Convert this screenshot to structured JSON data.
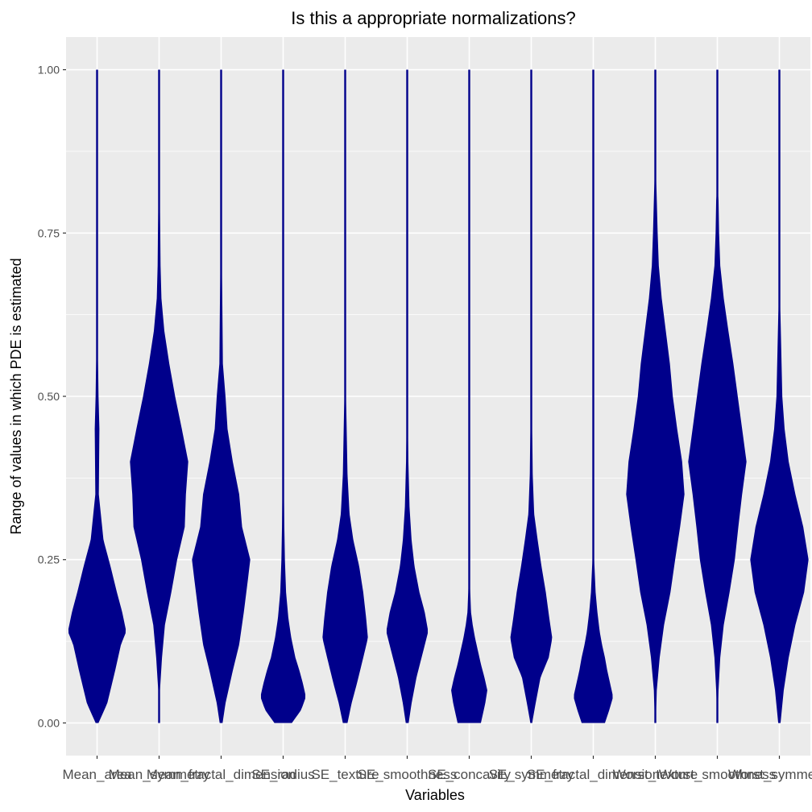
{
  "chart_data": {
    "type": "violin",
    "title": "Is this a appropriate normalizations?",
    "xlabel": "Variables",
    "ylabel": "Range of values in which PDE is estimated",
    "ylim": [
      -0.05,
      1.05
    ],
    "yticks": [
      0.0,
      0.25,
      0.5,
      0.75,
      1.0
    ],
    "ytick_labels": [
      "0.00",
      "0.25",
      "0.50",
      "0.75",
      "1.00"
    ],
    "grid": true,
    "fill_color": "#00008B",
    "categories": [
      "Mean_area",
      "Mean_symmetry",
      "Mean_fractal_dimension",
      "SE_radius",
      "SE_texture",
      "SE_smoothness",
      "SE_concavity",
      "SE_symmetry",
      "SE_fractal_dimension",
      "Worst_texture",
      "Worst_smoothness",
      "Worst_symmetry"
    ],
    "series": [
      {
        "range": [
          0.0,
          1.0
        ],
        "density": [
          [
            0.0,
            0.05
          ],
          [
            0.03,
            0.35
          ],
          [
            0.08,
            0.62
          ],
          [
            0.12,
            0.82
          ],
          [
            0.14,
            1.0
          ],
          [
            0.17,
            0.86
          ],
          [
            0.2,
            0.68
          ],
          [
            0.24,
            0.46
          ],
          [
            0.28,
            0.22
          ],
          [
            0.35,
            0.06
          ],
          [
            0.45,
            0.08
          ],
          [
            0.5,
            0.05
          ],
          [
            0.6,
            0.02
          ],
          [
            1.0,
            0.015
          ]
        ]
      },
      {
        "range": [
          0.0,
          1.0
        ],
        "density": [
          [
            0.0,
            0.015
          ],
          [
            0.05,
            0.03
          ],
          [
            0.1,
            0.1
          ],
          [
            0.15,
            0.2
          ],
          [
            0.2,
            0.42
          ],
          [
            0.25,
            0.62
          ],
          [
            0.3,
            0.88
          ],
          [
            0.35,
            0.92
          ],
          [
            0.4,
            1.0
          ],
          [
            0.45,
            0.78
          ],
          [
            0.5,
            0.55
          ],
          [
            0.55,
            0.35
          ],
          [
            0.6,
            0.18
          ],
          [
            0.65,
            0.08
          ],
          [
            0.7,
            0.05
          ],
          [
            0.8,
            0.03
          ],
          [
            1.0,
            0.015
          ]
        ]
      },
      {
        "range": [
          0.0,
          1.0
        ],
        "density": [
          [
            0.0,
            0.05
          ],
          [
            0.03,
            0.15
          ],
          [
            0.08,
            0.4
          ],
          [
            0.12,
            0.62
          ],
          [
            0.17,
            0.78
          ],
          [
            0.22,
            0.92
          ],
          [
            0.25,
            1.0
          ],
          [
            0.3,
            0.72
          ],
          [
            0.35,
            0.62
          ],
          [
            0.4,
            0.4
          ],
          [
            0.45,
            0.22
          ],
          [
            0.5,
            0.15
          ],
          [
            0.55,
            0.06
          ],
          [
            0.7,
            0.03
          ],
          [
            1.0,
            0.015
          ]
        ]
      },
      {
        "range": [
          0.0,
          1.0
        ],
        "density": [
          [
            0.0,
            0.3
          ],
          [
            0.02,
            0.62
          ],
          [
            0.04,
            0.78
          ],
          [
            0.06,
            0.68
          ],
          [
            0.08,
            0.56
          ],
          [
            0.1,
            0.42
          ],
          [
            0.13,
            0.28
          ],
          [
            0.16,
            0.18
          ],
          [
            0.2,
            0.1
          ],
          [
            0.25,
            0.06
          ],
          [
            0.3,
            0.04
          ],
          [
            0.45,
            0.015
          ],
          [
            1.0,
            0.015
          ]
        ]
      },
      {
        "range": [
          0.0,
          1.0
        ],
        "density": [
          [
            0.0,
            0.08
          ],
          [
            0.03,
            0.22
          ],
          [
            0.06,
            0.4
          ],
          [
            0.1,
            0.62
          ],
          [
            0.13,
            0.78
          ],
          [
            0.16,
            0.72
          ],
          [
            0.2,
            0.62
          ],
          [
            0.24,
            0.48
          ],
          [
            0.28,
            0.28
          ],
          [
            0.32,
            0.15
          ],
          [
            0.38,
            0.08
          ],
          [
            0.5,
            0.03
          ],
          [
            0.6,
            0.02
          ],
          [
            1.0,
            0.015
          ]
        ]
      },
      {
        "range": [
          0.0,
          1.0
        ],
        "density": [
          [
            0.0,
            0.05
          ],
          [
            0.03,
            0.15
          ],
          [
            0.07,
            0.32
          ],
          [
            0.11,
            0.55
          ],
          [
            0.14,
            0.72
          ],
          [
            0.17,
            0.6
          ],
          [
            0.2,
            0.42
          ],
          [
            0.24,
            0.25
          ],
          [
            0.28,
            0.15
          ],
          [
            0.33,
            0.08
          ],
          [
            0.4,
            0.04
          ],
          [
            0.5,
            0.02
          ],
          [
            1.0,
            0.015
          ]
        ]
      },
      {
        "range": [
          0.0,
          1.0
        ],
        "density": [
          [
            0.0,
            0.4
          ],
          [
            0.03,
            0.55
          ],
          [
            0.05,
            0.62
          ],
          [
            0.07,
            0.52
          ],
          [
            0.09,
            0.4
          ],
          [
            0.11,
            0.3
          ],
          [
            0.13,
            0.2
          ],
          [
            0.15,
            0.12
          ],
          [
            0.17,
            0.06
          ],
          [
            0.22,
            0.02
          ],
          [
            1.0,
            0.015
          ]
        ]
      },
      {
        "range": [
          0.0,
          1.0
        ],
        "density": [
          [
            0.0,
            0.03
          ],
          [
            0.03,
            0.15
          ],
          [
            0.07,
            0.32
          ],
          [
            0.1,
            0.6
          ],
          [
            0.13,
            0.72
          ],
          [
            0.16,
            0.62
          ],
          [
            0.2,
            0.5
          ],
          [
            0.24,
            0.35
          ],
          [
            0.28,
            0.22
          ],
          [
            0.32,
            0.1
          ],
          [
            0.38,
            0.05
          ],
          [
            0.5,
            0.02
          ],
          [
            1.0,
            0.015
          ]
        ]
      },
      {
        "range": [
          0.0,
          1.0
        ],
        "density": [
          [
            0.0,
            0.4
          ],
          [
            0.02,
            0.55
          ],
          [
            0.04,
            0.68
          ],
          [
            0.06,
            0.58
          ],
          [
            0.08,
            0.48
          ],
          [
            0.1,
            0.4
          ],
          [
            0.12,
            0.3
          ],
          [
            0.14,
            0.22
          ],
          [
            0.17,
            0.14
          ],
          [
            0.2,
            0.08
          ],
          [
            0.25,
            0.03
          ],
          [
            1.0,
            0.015
          ]
        ]
      },
      {
        "range": [
          0.0,
          1.0
        ],
        "density": [
          [
            0.0,
            0.02
          ],
          [
            0.05,
            0.05
          ],
          [
            0.1,
            0.15
          ],
          [
            0.15,
            0.3
          ],
          [
            0.2,
            0.52
          ],
          [
            0.25,
            0.68
          ],
          [
            0.3,
            0.85
          ],
          [
            0.35,
            1.0
          ],
          [
            0.4,
            0.92
          ],
          [
            0.45,
            0.75
          ],
          [
            0.5,
            0.6
          ],
          [
            0.55,
            0.5
          ],
          [
            0.6,
            0.36
          ],
          [
            0.65,
            0.22
          ],
          [
            0.7,
            0.12
          ],
          [
            0.75,
            0.08
          ],
          [
            0.8,
            0.05
          ],
          [
            0.85,
            0.02
          ],
          [
            1.0,
            0.015
          ]
        ]
      },
      {
        "range": [
          0.0,
          1.0
        ],
        "density": [
          [
            0.0,
            0.015
          ],
          [
            0.05,
            0.04
          ],
          [
            0.1,
            0.1
          ],
          [
            0.15,
            0.22
          ],
          [
            0.2,
            0.42
          ],
          [
            0.25,
            0.6
          ],
          [
            0.3,
            0.72
          ],
          [
            0.35,
            0.85
          ],
          [
            0.4,
            1.0
          ],
          [
            0.45,
            0.85
          ],
          [
            0.5,
            0.7
          ],
          [
            0.55,
            0.55
          ],
          [
            0.6,
            0.38
          ],
          [
            0.65,
            0.22
          ],
          [
            0.7,
            0.1
          ],
          [
            0.75,
            0.06
          ],
          [
            0.8,
            0.04
          ],
          [
            0.82,
            0.02
          ],
          [
            1.0,
            0.015
          ]
        ]
      },
      {
        "range": [
          0.0,
          1.0
        ],
        "density": [
          [
            0.0,
            0.04
          ],
          [
            0.05,
            0.15
          ],
          [
            0.1,
            0.32
          ],
          [
            0.15,
            0.55
          ],
          [
            0.2,
            0.85
          ],
          [
            0.25,
            1.0
          ],
          [
            0.3,
            0.82
          ],
          [
            0.35,
            0.55
          ],
          [
            0.4,
            0.32
          ],
          [
            0.45,
            0.18
          ],
          [
            0.5,
            0.1
          ],
          [
            0.6,
            0.05
          ],
          [
            0.66,
            0.02
          ],
          [
            1.0,
            0.015
          ]
        ]
      }
    ]
  }
}
